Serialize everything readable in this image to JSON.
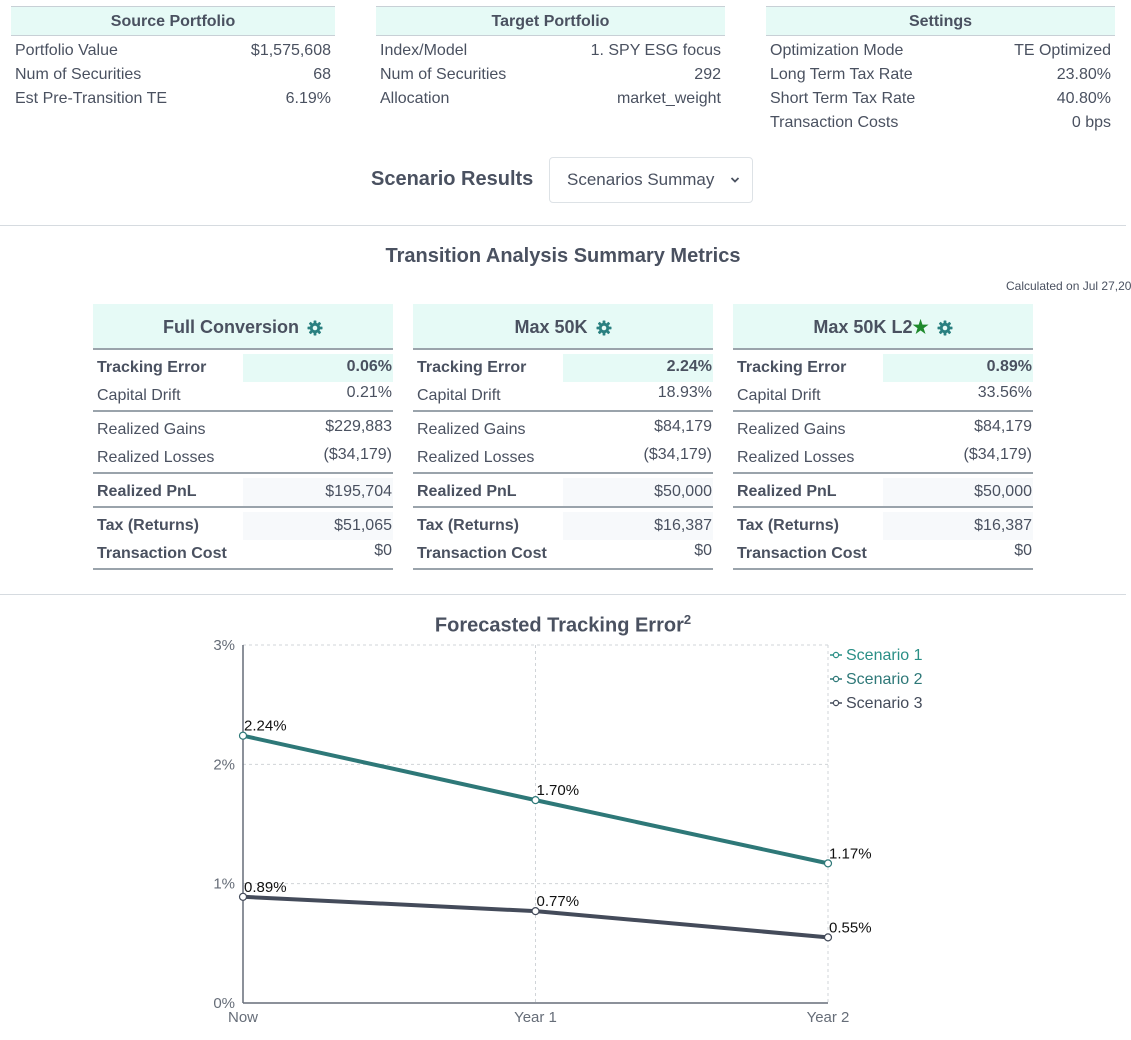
{
  "source": {
    "title": "Source Portfolio",
    "rows": [
      {
        "label": "Portfolio Value",
        "value": "$1,575,608"
      },
      {
        "label": "Num of Securities",
        "value": "68"
      },
      {
        "label": "Est Pre-Transition TE",
        "value": "6.19%"
      }
    ]
  },
  "target": {
    "title": "Target Portfolio",
    "rows": [
      {
        "label": "Index/Model",
        "value": "1. SPY ESG focus"
      },
      {
        "label": "Num of Securities",
        "value": "292"
      },
      {
        "label": "Allocation",
        "value": "market_weight"
      }
    ]
  },
  "settings": {
    "title": "Settings",
    "rows": [
      {
        "label": "Optimization Mode",
        "value": "TE Optimized"
      },
      {
        "label": "Long Term Tax Rate",
        "value": "23.80%"
      },
      {
        "label": "Short Term Tax Rate",
        "value": "40.80%"
      },
      {
        "label": "Transaction Costs",
        "value": "0 bps"
      }
    ]
  },
  "scenario_results": {
    "label": "Scenario Results",
    "select_value": "Scenarios Summay",
    "chevron": "chevron-down-icon"
  },
  "summary": {
    "title": "Transition Analysis Summary Metrics",
    "calculated_on": "Calculated on Jul 27,20",
    "labels": {
      "tracking_error": "Tracking Error",
      "capital_drift": "Capital Drift",
      "realized_gains": "Realized Gains",
      "realized_losses": "Realized Losses",
      "realized_pnl": "Realized PnL",
      "tax": "Tax (Returns)",
      "transaction_cost": "Transaction Cost"
    },
    "cards": [
      {
        "name": "Full Conversion",
        "starred": false,
        "tracking_error": "0.06%",
        "capital_drift": "0.21%",
        "realized_gains": "$229,883",
        "realized_losses": "($34,179)",
        "realized_pnl": "$195,704",
        "tax": "$51,065",
        "transaction_cost": "$0"
      },
      {
        "name": "Max 50K",
        "starred": false,
        "tracking_error": "2.24%",
        "capital_drift": "18.93%",
        "realized_gains": "$84,179",
        "realized_losses": "($34,179)",
        "realized_pnl": "$50,000",
        "tax": "$16,387",
        "transaction_cost": "$0"
      },
      {
        "name": "Max 50K L2",
        "starred": true,
        "tracking_error": "0.89%",
        "capital_drift": "33.56%",
        "realized_gains": "$84,179",
        "realized_losses": "($34,179)",
        "realized_pnl": "$50,000",
        "tax": "$16,387",
        "transaction_cost": "$0"
      }
    ],
    "colors": {
      "header_bg": "#e6faf6",
      "gear": "#2a8080",
      "star": "#1e8a2c"
    }
  },
  "chart_data": {
    "type": "line",
    "title": "Forecasted Tracking Error",
    "title_superscript": "2",
    "categories": [
      "Now",
      "Year 1",
      "Year 2"
    ],
    "ylim": [
      0,
      3
    ],
    "yticks": [
      0,
      1,
      2,
      3
    ],
    "ytick_labels": [
      "0%",
      "1%",
      "2%",
      "3%"
    ],
    "grid": true,
    "legend_position": "top-right",
    "series": [
      {
        "name": "Scenario 1",
        "values": [
          0.06,
          0.05,
          0.04
        ],
        "color": "#2a8f86",
        "show_labels": false,
        "labels": []
      },
      {
        "name": "Scenario 2",
        "values": [
          2.24,
          1.7,
          1.17
        ],
        "color": "#2e7878",
        "show_labels": true,
        "labels": [
          "2.24%",
          "1.70%",
          "1.17%"
        ]
      },
      {
        "name": "Scenario 3",
        "values": [
          0.89,
          0.77,
          0.55
        ],
        "color": "#444b5a",
        "show_labels": true,
        "labels": [
          "0.89%",
          "0.77%",
          "0.55%"
        ]
      }
    ]
  }
}
